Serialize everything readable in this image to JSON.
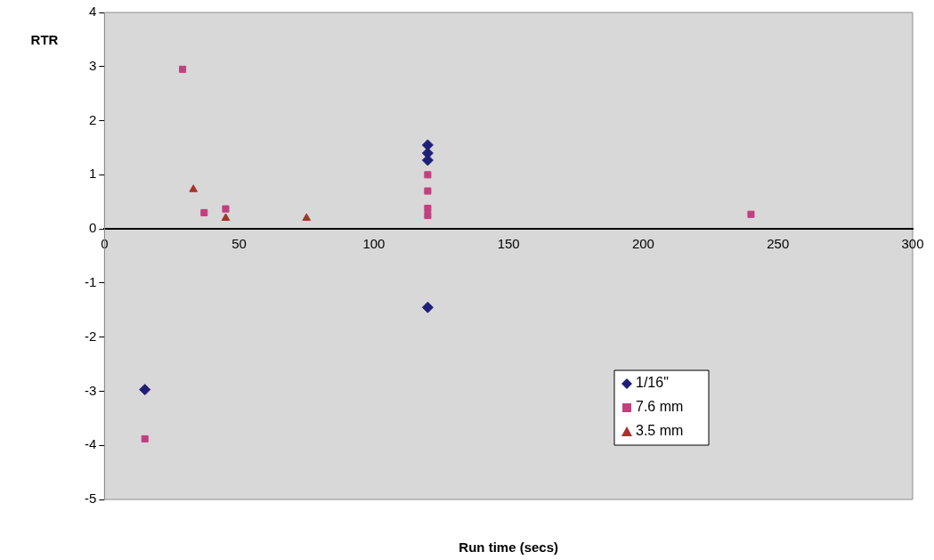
{
  "chart_data": {
    "type": "scatter",
    "xlabel": "Run time (secs)",
    "ylabel": "RTR",
    "xlim": [
      0,
      300
    ],
    "xticks": [
      0,
      50,
      100,
      150,
      200,
      250,
      300
    ],
    "ylim": [
      -5,
      4
    ],
    "yticks": [
      -5,
      -4,
      -3,
      -2,
      -1,
      0,
      1,
      2,
      3,
      4
    ],
    "grid": false,
    "legend": "bottom right",
    "series": [
      {
        "name": "1/16\"",
        "color": "#1f1f78",
        "marker": "diamond",
        "x": [
          120,
          120,
          120,
          120,
          15
        ],
        "values": [
          1.55,
          1.4,
          1.27,
          -1.45,
          -2.97
        ]
      },
      {
        "name": "7.6 mm",
        "color": "#c0407e",
        "marker": "square",
        "x": [
          29,
          37,
          45,
          120,
          120,
          120,
          120,
          240,
          15
        ],
        "values": [
          2.95,
          0.3,
          0.37,
          1.0,
          0.7,
          0.38,
          0.25,
          0.27,
          -3.88
        ]
      },
      {
        "name": "3.5 mm",
        "color": "#a8322a",
        "marker": "triangle",
        "x": [
          33,
          45,
          75
        ],
        "values": [
          0.73,
          0.2,
          0.2
        ]
      }
    ]
  }
}
